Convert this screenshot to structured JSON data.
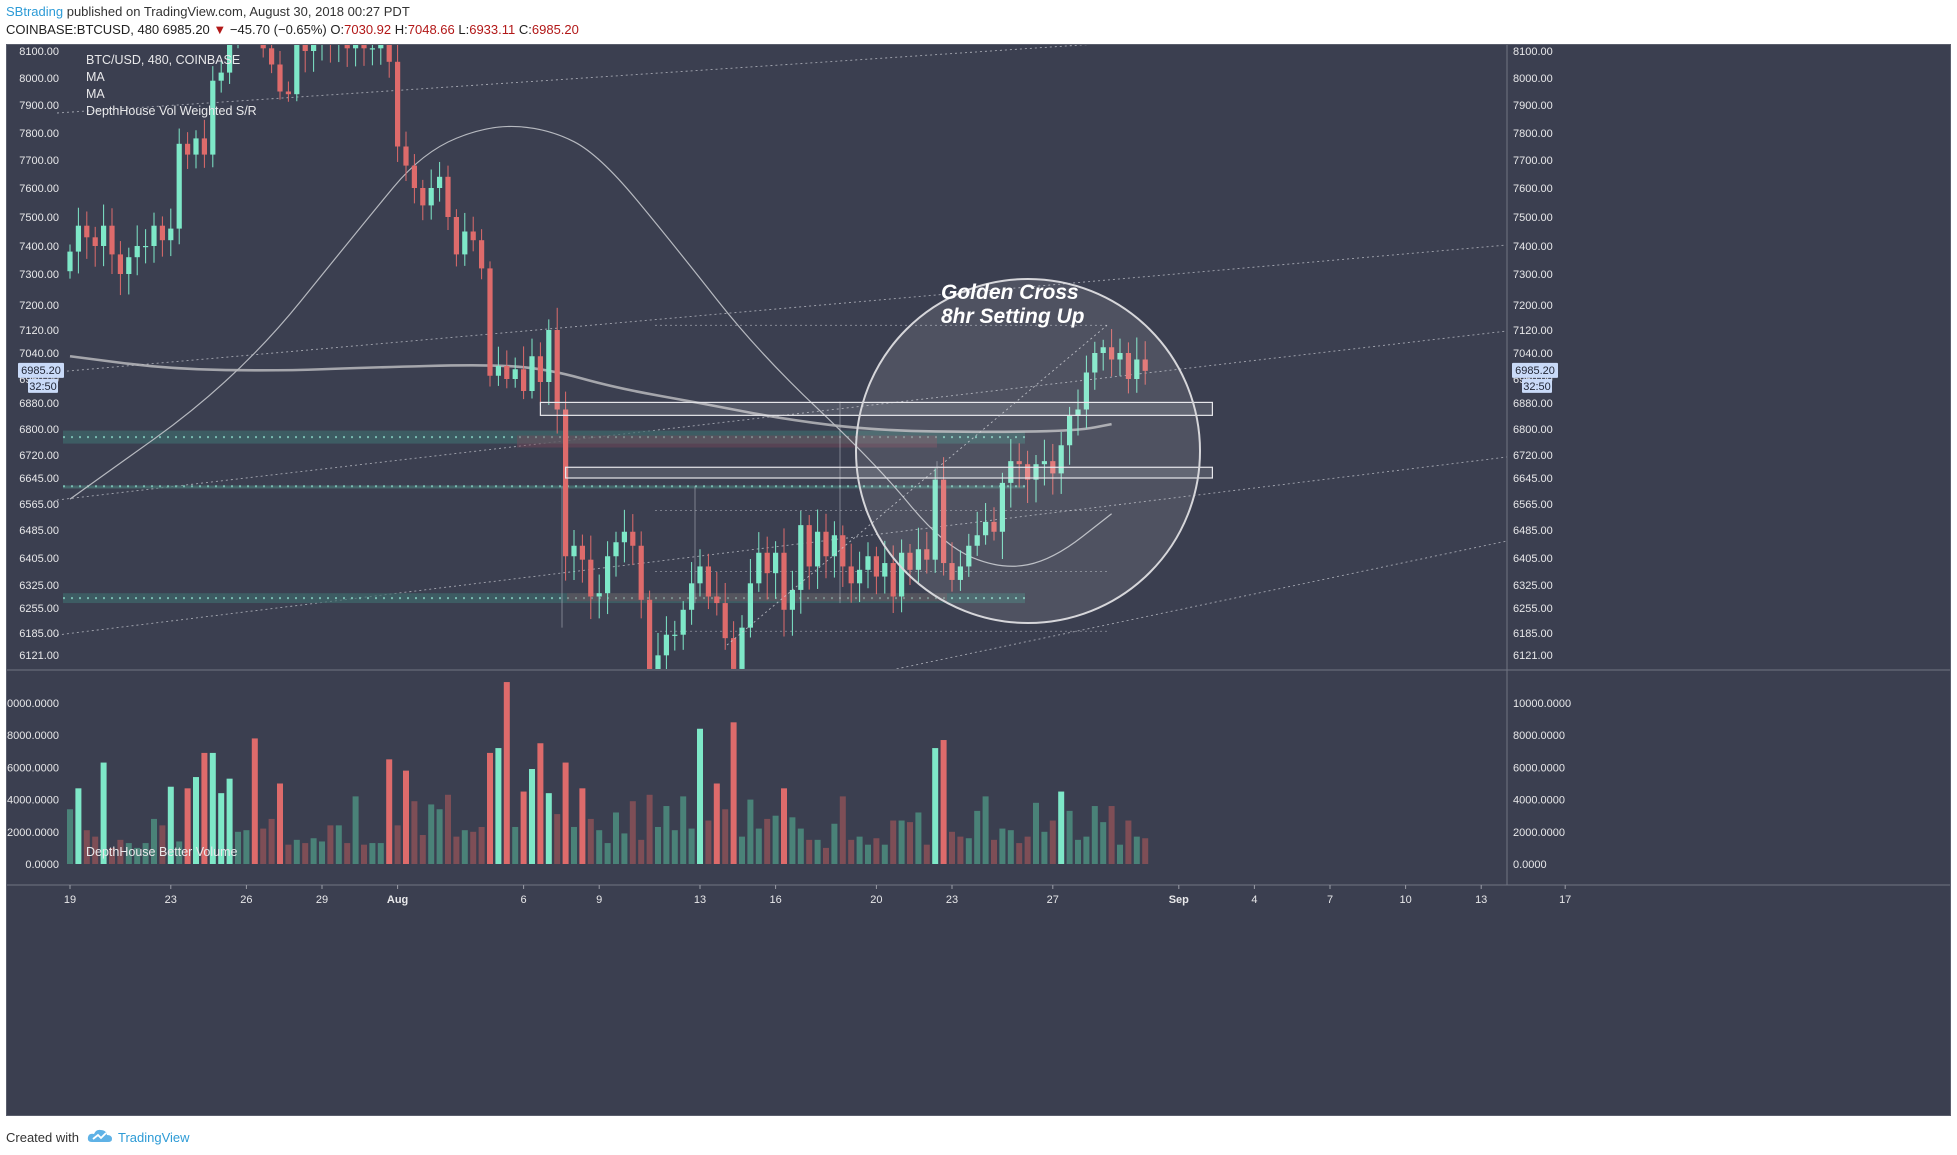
{
  "header": {
    "author": "SBtrading",
    "published": "published on TradingView.com, August 30, 2018 00:27 PDT",
    "symbol": "COINBASE:BTCUSD, 480",
    "price": "6985.20",
    "change_arrow": "▼",
    "change": "−45.70 (−0.65%)",
    "o_label": "O:",
    "o": "7030.92",
    "h_label": "H:",
    "h": "7048.66",
    "l_label": "L:",
    "l": "6933.11",
    "c_label": "C:",
    "c": "6985.20"
  },
  "legend": {
    "line1": "BTC/USD, 480, COINBASE",
    "line2": "MA",
    "line3": "MA",
    "line4": "DepthHouse Vol Weighted S/R",
    "volume_title": "DepthHouse Better Volume"
  },
  "annotation": {
    "line1": "Golden Cross",
    "line2": "8hr Setting Up"
  },
  "price_tag": {
    "price": "6985.20",
    "countdown": "32:50"
  },
  "footer": {
    "created": "Created with",
    "brand": "TradingView"
  },
  "colors": {
    "background": "#3b3f50",
    "up": "#7ee8c8",
    "down": "#de6b6b",
    "up_volume_dim": "#4a8278",
    "down_volume_dim": "#7e4e56",
    "text": "#e8e8ea",
    "label_bg": "#c9daf8"
  },
  "chart_data": {
    "type": "candlestick",
    "timeframe": "480",
    "price_axis": {
      "ticks": [
        8100,
        8000,
        7900,
        7800,
        7700,
        7600,
        7500,
        7400,
        7300,
        7200,
        7120,
        7040,
        6960,
        6880,
        6800,
        6720,
        6645,
        6565,
        6485,
        6405,
        6325,
        6255,
        6185,
        6121
      ],
      "tick_labels": [
        "8100.00",
        "8000.00",
        "7900.00",
        "7800.00",
        "7700.00",
        "7600.00",
        "7500.00",
        "7400.00",
        "7300.00",
        "7200.00",
        "7120.00",
        "7040.00",
        "6960.00",
        "6880.00",
        "6800.00",
        "6720.00",
        "6645.00",
        "6565.00",
        "6485.00",
        "6405.00",
        "6325.00",
        "6255.00",
        "6185.00",
        "6121.00"
      ]
    },
    "volume_axis": {
      "ticks": [
        10000,
        8000,
        6000,
        4000,
        2000,
        0
      ],
      "tick_labels": [
        "10000.0000",
        "8000.0000",
        "6000.0000",
        "4000.0000",
        "2000.0000",
        "0.0000"
      ]
    },
    "time_axis": {
      "labels": [
        "19",
        "23",
        "26",
        "29",
        "Aug",
        "6",
        "9",
        "13",
        "16",
        "20",
        "23",
        "27",
        "Sep",
        "4",
        "7",
        "10",
        "13",
        "17"
      ],
      "bar_index": [
        0,
        12,
        21,
        30,
        39,
        54,
        63,
        75,
        84,
        96,
        105,
        117,
        132,
        141,
        150,
        159,
        168,
        178
      ]
    },
    "candles": {
      "open": [
        7310,
        7380,
        7470,
        7430,
        7400,
        7470,
        7370,
        7300,
        7360,
        7400,
        7400,
        7470,
        7420,
        7460,
        7760,
        7720,
        7780,
        7720,
        7990,
        8020,
        8150,
        8190,
        8240,
        8170,
        8110,
        8050,
        7950,
        7940,
        8130,
        8100,
        8140,
        8220,
        8130,
        8160,
        8110,
        8170,
        8110,
        8110,
        8140,
        8060,
        7750,
        7680,
        7600,
        7540,
        7600,
        7640,
        7500,
        7370,
        7450,
        7420,
        7320,
        6970,
        7000,
        6960,
        6990,
        6920,
        7030,
        6950,
        7120,
        6860,
        6410,
        6440,
        6400,
        6290,
        6300,
        6410,
        6450,
        6480,
        6440,
        6280,
        6050,
        6120,
        6180,
        6180,
        6250,
        6330,
        6380,
        6290,
        6270,
        6170,
        6080,
        6200,
        6330,
        6420,
        6360,
        6420,
        6250,
        6310,
        6500,
        6380,
        6480,
        6410,
        6470,
        6380,
        6330,
        6370,
        6410,
        6350,
        6390,
        6290,
        6420,
        6370,
        6430,
        6400,
        6640,
        6390,
        6340,
        6380,
        6440,
        6470,
        6510,
        6480,
        6630,
        6700,
        6690,
        6640,
        6690,
        6700,
        6660,
        6750,
        6840,
        6860,
        6980,
        7040,
        7060,
        7020,
        7040,
        6960,
        7020
      ],
      "close": [
        7380,
        7470,
        7430,
        7400,
        7470,
        7370,
        7300,
        7360,
        7400,
        7400,
        7470,
        7420,
        7460,
        7760,
        7720,
        7780,
        7720,
        7990,
        8020,
        8150,
        8190,
        8240,
        8170,
        8110,
        8050,
        7950,
        7940,
        8130,
        8100,
        8140,
        8220,
        8130,
        8160,
        8110,
        8170,
        8110,
        8110,
        8140,
        8060,
        7750,
        7680,
        7600,
        7540,
        7600,
        7640,
        7500,
        7370,
        7450,
        7420,
        7320,
        6970,
        7000,
        6960,
        6990,
        6920,
        7030,
        6950,
        7120,
        6860,
        6410,
        6440,
        6400,
        6290,
        6300,
        6410,
        6450,
        6480,
        6440,
        6280,
        6050,
        6120,
        6180,
        6180,
        6250,
        6330,
        6380,
        6290,
        6270,
        6170,
        6080,
        6200,
        6330,
        6420,
        6360,
        6420,
        6250,
        6310,
        6500,
        6380,
        6480,
        6410,
        6470,
        6380,
        6330,
        6370,
        6410,
        6350,
        6390,
        6290,
        6420,
        6370,
        6430,
        6400,
        6640,
        6390,
        6340,
        6380,
        6440,
        6470,
        6510,
        6480,
        6630,
        6700,
        6690,
        6640,
        6690,
        6700,
        6660,
        6750,
        6840,
        6860,
        6980,
        7040,
        7060,
        7020,
        7040,
        6960,
        7020,
        6985
      ]
    },
    "volume": {
      "values": [
        3400,
        4700,
        2100,
        1700,
        6300,
        1000,
        1500,
        1300,
        1000,
        1300,
        2800,
        2400,
        4800,
        1400,
        4700,
        5400,
        6900,
        6900,
        4400,
        5300,
        2000,
        2100,
        7800,
        2200,
        2800,
        5000,
        1200,
        1500,
        1300,
        1600,
        1400,
        2400,
        2400,
        1300,
        4200,
        1200,
        1300,
        1300,
        6500,
        2400,
        5800,
        3900,
        1800,
        3700,
        3400,
        4300,
        1700,
        2100,
        2000,
        2300,
        6900,
        7200,
        11300,
        2300,
        4500,
        5900,
        7500,
        4400,
        3100,
        6300,
        2300,
        4700,
        2800,
        2100,
        1300,
        3200,
        1900,
        3900,
        1500,
        4300,
        2300,
        3600,
        2100,
        4200,
        2200,
        8400,
        2700,
        5000,
        3400,
        8800,
        1700,
        4000,
        2200,
        2800,
        3000,
        4700,
        2900,
        2200,
        1500,
        1500,
        1000,
        2500,
        4200,
        1500,
        1700,
        1200,
        1600,
        1200,
        2700,
        2700,
        2600,
        3200,
        1200,
        7200,
        7700,
        2000,
        1700,
        1600,
        3300,
        4200,
        1500,
        2200,
        2100,
        1300,
        1700,
        3800,
        2000,
        2700,
        4500,
        3300,
        1500,
        1700,
        3600,
        2600,
        3600,
        1200,
        2700,
        1700,
        1600
      ],
      "up": [
        true,
        true,
        false,
        false,
        true,
        false,
        false,
        true,
        true,
        true,
        true,
        false,
        true,
        true,
        false,
        true,
        false,
        true,
        true,
        true,
        true,
        true,
        false,
        false,
        false,
        false,
        false,
        true,
        false,
        true,
        true,
        false,
        true,
        false,
        true,
        false,
        true,
        true,
        false,
        false,
        false,
        false,
        false,
        true,
        true,
        false,
        false,
        true,
        false,
        false,
        false,
        true,
        false,
        true,
        false,
        true,
        false,
        true,
        false,
        false,
        true,
        false,
        false,
        true,
        true,
        true,
        true,
        false,
        false,
        false,
        true,
        true,
        true,
        true,
        true,
        true,
        false,
        false,
        false,
        false,
        true,
        true,
        true,
        false,
        true,
        false,
        true,
        true,
        false,
        true,
        false,
        true,
        false,
        false,
        true,
        true,
        false,
        true,
        false,
        true,
        false,
        true,
        false,
        true,
        false,
        false,
        false,
        true,
        true,
        true,
        false,
        true,
        true,
        false,
        false,
        true,
        true,
        false,
        true,
        true,
        true,
        true,
        true,
        true,
        false,
        true,
        false,
        true,
        false
      ]
    },
    "moving_averages": [
      {
        "values": [
          [
            0,
            6580
          ],
          [
            20,
            6960
          ],
          [
            35,
            7480
          ],
          [
            42,
            7730
          ],
          [
            50,
            7830
          ],
          [
            57,
            7815
          ],
          [
            63,
            7720
          ],
          [
            72,
            7400
          ],
          [
            82,
            7040
          ],
          [
            96,
            6690
          ],
          [
            104,
            6440
          ],
          [
            111,
            6370
          ],
          [
            117,
            6400
          ],
          [
            124,
            6535
          ]
        ]
      },
      {
        "values": [
          [
            0,
            7030
          ],
          [
            12,
            6990
          ],
          [
            25,
            6985
          ],
          [
            35,
            6995
          ],
          [
            50,
            7005
          ],
          [
            57,
            6990
          ],
          [
            65,
            6930
          ],
          [
            75,
            6880
          ],
          [
            85,
            6830
          ],
          [
            96,
            6795
          ],
          [
            110,
            6790
          ],
          [
            120,
            6795
          ],
          [
            124,
            6815
          ]
        ]
      }
    ],
    "support_resistance_zones": [
      {
        "from": 6755,
        "to": 6795
      },
      {
        "from": 6617,
        "to": 6622
      },
      {
        "from": 6270,
        "to": 6300
      }
    ],
    "rectangles": [
      {
        "from_bar": 56,
        "to_bar": 136,
        "top": 6882,
        "bottom": 6842
      },
      {
        "from_bar": 59,
        "to_bar": 136,
        "top": 6680,
        "bottom": 6645
      }
    ],
    "guide_levels": [
      7135,
      6545,
      6365,
      6190
    ]
  }
}
